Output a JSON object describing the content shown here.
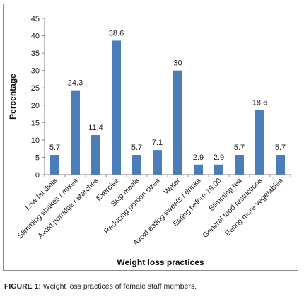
{
  "caption": {
    "label": "FIGURE 1:",
    "text": "Weight loss practices of female staff members."
  },
  "chart_data": {
    "type": "bar",
    "xlabel": "Weight loss practices",
    "ylabel": "Percentage",
    "ylim": [
      0,
      45
    ],
    "yticks": [
      0,
      5,
      10,
      15,
      20,
      25,
      30,
      35,
      40,
      45
    ],
    "grid": false,
    "categories": [
      "Low fat diets",
      "Slimming shakes / mixes",
      "Avoid porridge / starches",
      "Exercise",
      "Skip meals",
      "Reducing portion sizes",
      "Water",
      "Avoid eating sweets / drinks",
      "Eating before 19:00",
      "Slimming tea",
      "General food restrictions",
      "Eating more vegetables"
    ],
    "values": [
      5.7,
      24.3,
      11.4,
      38.6,
      5.7,
      7.1,
      30,
      2.9,
      2.9,
      5.7,
      18.6,
      5.7
    ],
    "bar_color": "#4a7ebb"
  }
}
